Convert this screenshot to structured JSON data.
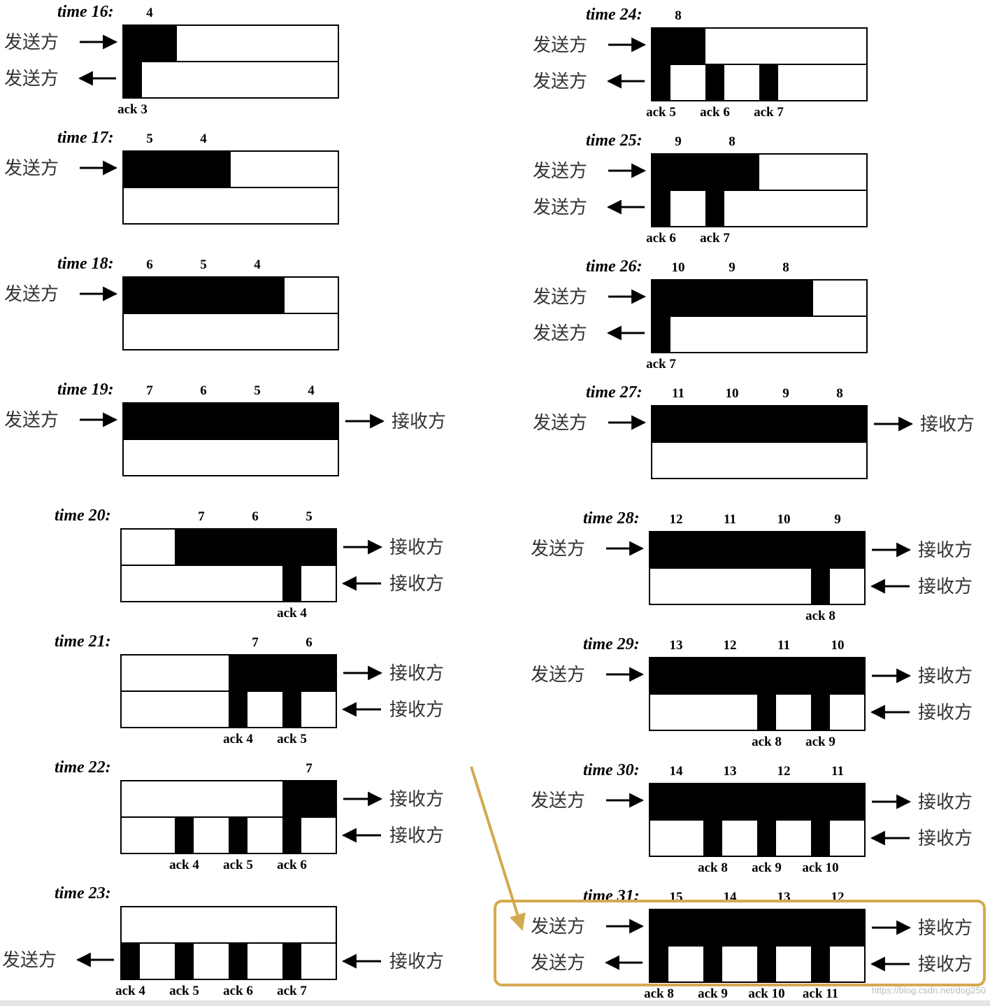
{
  "figure": {
    "watermark": "https://blog.csdn.net/dog250",
    "labels": {
      "sender": "发送方",
      "receiver": "接收方"
    }
  },
  "panels": [
    {
      "time": "time 16:",
      "seq": [
        "4"
      ],
      "top_units": 1,
      "top_start": 0,
      "acks": [
        {
          "slot": 0,
          "label": "ack 3"
        }
      ],
      "arrows": {
        "sender_top": "in",
        "sender_bottom": "out"
      }
    },
    {
      "time": "time 17:",
      "seq": [
        "5",
        "4"
      ],
      "top_units": 2,
      "top_start": 0,
      "acks": [],
      "arrows": {
        "sender_top": "in"
      }
    },
    {
      "time": "time 18:",
      "seq": [
        "6",
        "5",
        "4"
      ],
      "top_units": 3,
      "top_start": 0,
      "acks": [],
      "arrows": {
        "sender_top": "in"
      }
    },
    {
      "time": "time 19:",
      "seq": [
        "7",
        "6",
        "5",
        "4"
      ],
      "top_units": 4,
      "top_start": 0,
      "acks": [],
      "arrows": {
        "sender_top": "in",
        "receiver_top": "out"
      }
    },
    {
      "time": "time 20:",
      "seq": [
        "7",
        "6",
        "5"
      ],
      "top_units": 3,
      "top_start": 1,
      "acks": [
        {
          "slot": 3,
          "label": "ack 4"
        }
      ],
      "arrows": {
        "receiver_top": "out",
        "receiver_bottom": "in"
      }
    },
    {
      "time": "time 21:",
      "seq": [
        "7",
        "6"
      ],
      "top_units": 2,
      "top_start": 2,
      "acks": [
        {
          "slot": 2,
          "label": "ack 4"
        },
        {
          "slot": 3,
          "label": "ack 5"
        }
      ],
      "arrows": {
        "receiver_top": "out",
        "receiver_bottom": "in"
      }
    },
    {
      "time": "time 22:",
      "seq": [
        "7"
      ],
      "top_units": 1,
      "top_start": 3,
      "acks": [
        {
          "slot": 1,
          "label": "ack 4"
        },
        {
          "slot": 2,
          "label": "ack 5"
        },
        {
          "slot": 3,
          "label": "ack 6"
        }
      ],
      "arrows": {
        "receiver_top": "out",
        "receiver_bottom": "in"
      }
    },
    {
      "time": "time 23:",
      "seq": [],
      "top_units": 0,
      "top_start": 0,
      "acks": [
        {
          "slot": 0,
          "label": "ack 4"
        },
        {
          "slot": 1,
          "label": "ack 5"
        },
        {
          "slot": 2,
          "label": "ack 6"
        },
        {
          "slot": 3,
          "label": "ack 7"
        }
      ],
      "arrows": {
        "sender_bottom": "out",
        "receiver_bottom": "in"
      }
    },
    {
      "time": "time 24:",
      "seq": [
        "8"
      ],
      "top_units": 1,
      "top_start": 0,
      "acks": [
        {
          "slot": 0,
          "label": "ack 5"
        },
        {
          "slot": 1,
          "label": "ack 6"
        },
        {
          "slot": 2,
          "label": "ack 7"
        }
      ],
      "arrows": {
        "sender_top": "in",
        "sender_bottom": "out"
      }
    },
    {
      "time": "time 25:",
      "seq": [
        "9",
        "8"
      ],
      "top_units": 2,
      "top_start": 0,
      "acks": [
        {
          "slot": 0,
          "label": "ack 6"
        },
        {
          "slot": 1,
          "label": "ack 7"
        }
      ],
      "arrows": {
        "sender_top": "in",
        "sender_bottom": "out"
      }
    },
    {
      "time": "time 26:",
      "seq": [
        "10",
        "9",
        "8"
      ],
      "top_units": 3,
      "top_start": 0,
      "acks": [
        {
          "slot": 0,
          "label": "ack 7"
        }
      ],
      "arrows": {
        "sender_top": "in",
        "sender_bottom": "out"
      }
    },
    {
      "time": "time 27:",
      "seq": [
        "11",
        "10",
        "9",
        "8"
      ],
      "top_units": 4,
      "top_start": 0,
      "acks": [],
      "arrows": {
        "sender_top": "in",
        "receiver_top": "out"
      }
    },
    {
      "time": "time 28:",
      "seq": [
        "12",
        "11",
        "10",
        "9"
      ],
      "top_units": 4,
      "top_start": 0,
      "acks": [
        {
          "slot": 3,
          "label": "ack 8"
        }
      ],
      "arrows": {
        "sender_top": "in",
        "receiver_top": "out",
        "receiver_bottom": "in"
      }
    },
    {
      "time": "time 29:",
      "seq": [
        "13",
        "12",
        "11",
        "10"
      ],
      "top_units": 4,
      "top_start": 0,
      "acks": [
        {
          "slot": 2,
          "label": "ack 8"
        },
        {
          "slot": 3,
          "label": "ack 9"
        }
      ],
      "arrows": {
        "sender_top": "in",
        "receiver_top": "out",
        "receiver_bottom": "in"
      }
    },
    {
      "time": "time 30:",
      "seq": [
        "14",
        "13",
        "12",
        "11"
      ],
      "top_units": 4,
      "top_start": 0,
      "acks": [
        {
          "slot": 1,
          "label": "ack 8"
        },
        {
          "slot": 2,
          "label": "ack 9"
        },
        {
          "slot": 3,
          "label": "ack 10"
        }
      ],
      "arrows": {
        "sender_top": "in",
        "receiver_top": "out",
        "receiver_bottom": "in"
      }
    },
    {
      "time": "time 31:",
      "seq": [
        "15",
        "14",
        "13",
        "12"
      ],
      "top_units": 4,
      "top_start": 0,
      "acks": [
        {
          "slot": 0,
          "label": "ack 8"
        },
        {
          "slot": 1,
          "label": "ack 9"
        },
        {
          "slot": 2,
          "label": "ack 10"
        },
        {
          "slot": 3,
          "label": "ack 11"
        }
      ],
      "arrows": {
        "sender_top": "in",
        "sender_bottom": "out",
        "receiver_top": "out",
        "receiver_bottom": "in"
      },
      "highlighted": true
    }
  ],
  "colors": {
    "fill": "#000000",
    "highlight": "#d4a94e"
  }
}
